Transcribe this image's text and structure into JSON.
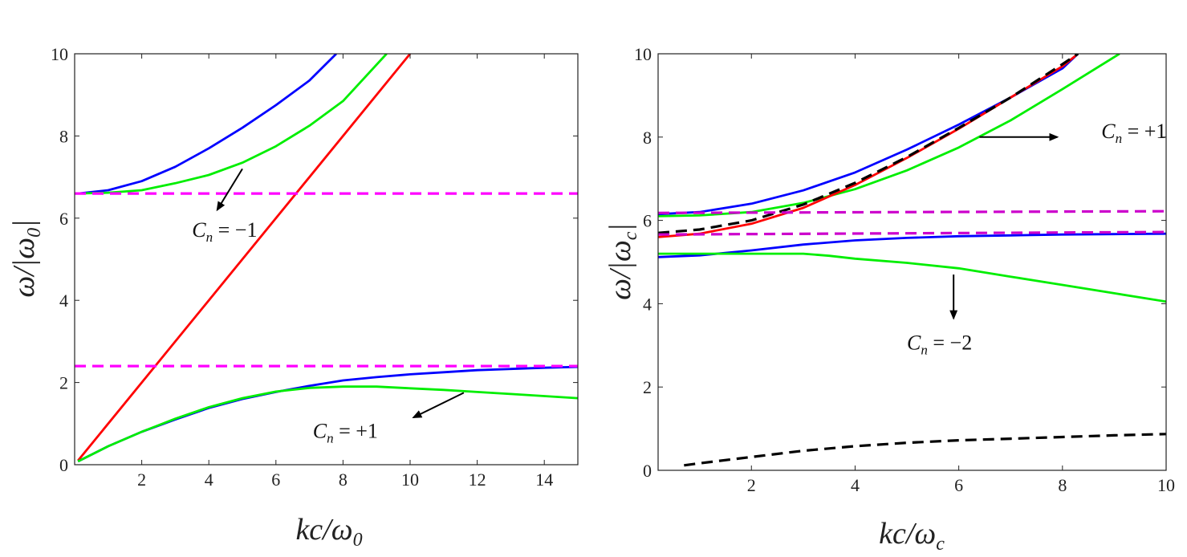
{
  "chart_data": [
    {
      "type": "line",
      "title": "",
      "xlabel": {
        "main": "kc/ω",
        "sub": "0"
      },
      "ylabel": {
        "main": "ω/|ω",
        "sub": "0",
        "end": "|"
      },
      "xlim": [
        0,
        15
      ],
      "ylim": [
        0,
        10
      ],
      "xticks": [
        2,
        4,
        6,
        8,
        10,
        12,
        14
      ],
      "yticks": [
        0,
        2,
        4,
        6,
        8,
        10
      ],
      "series": [
        {
          "name": "upper-blue",
          "color": "#0000ff",
          "dash": false,
          "x": [
            0.1,
            1,
            2,
            3,
            4,
            5,
            6,
            7,
            7.8
          ],
          "y": [
            6.6,
            6.68,
            6.9,
            7.25,
            7.7,
            8.2,
            8.75,
            9.35,
            10
          ]
        },
        {
          "name": "upper-green",
          "color": "#00ee00",
          "dash": false,
          "x": [
            0.1,
            1,
            2,
            3,
            4,
            5,
            6,
            7,
            8,
            9.3
          ],
          "y": [
            6.6,
            6.62,
            6.68,
            6.85,
            7.05,
            7.35,
            7.75,
            8.25,
            8.85,
            10
          ]
        },
        {
          "name": "light-line",
          "color": "#ff0000",
          "dash": false,
          "x": [
            0.1,
            10
          ],
          "y": [
            0.1,
            10
          ]
        },
        {
          "name": "lower-blue",
          "color": "#0000ff",
          "dash": false,
          "x": [
            0.1,
            1,
            2,
            3,
            4,
            5,
            6,
            7,
            8,
            9,
            10,
            11,
            12,
            13,
            14,
            15
          ],
          "y": [
            0.08,
            0.45,
            0.8,
            1.1,
            1.38,
            1.6,
            1.77,
            1.92,
            2.05,
            2.13,
            2.2,
            2.25,
            2.3,
            2.33,
            2.36,
            2.38
          ]
        },
        {
          "name": "lower-green",
          "color": "#00ee00",
          "dash": false,
          "x": [
            0.1,
            1,
            2,
            3,
            4,
            5,
            6,
            7,
            8,
            9,
            10,
            11,
            12,
            13,
            14,
            15
          ],
          "y": [
            0.08,
            0.45,
            0.8,
            1.12,
            1.4,
            1.62,
            1.78,
            1.87,
            1.9,
            1.9,
            1.86,
            1.82,
            1.77,
            1.72,
            1.67,
            1.62
          ]
        },
        {
          "name": "resonance-upper",
          "color": "#ff00ff",
          "dash": true,
          "x": [
            0,
            15
          ],
          "y": [
            6.6,
            6.6
          ]
        },
        {
          "name": "resonance-lower",
          "color": "#ff00ff",
          "dash": true,
          "x": [
            0,
            15
          ],
          "y": [
            2.4,
            2.4
          ]
        }
      ],
      "annotations": [
        {
          "main": "C",
          "sub": "n",
          "text": " = −1",
          "x": 3.5,
          "y": 5.55,
          "arrow_from": [
            5.0,
            7.2
          ],
          "arrow_to": [
            4.25,
            6.2
          ]
        },
        {
          "main": "C",
          "sub": "n",
          "text": " = +1",
          "x": 7.1,
          "y": 0.65,
          "arrow_from": [
            11.6,
            1.75
          ],
          "arrow_to": [
            10.1,
            1.15
          ]
        }
      ]
    },
    {
      "type": "line",
      "title": "",
      "xlabel": {
        "main": "kc/ω",
        "sub": "c"
      },
      "ylabel": {
        "main": "ω/|ω",
        "sub": "c",
        "end": "|"
      },
      "xlim": [
        0.2,
        10
      ],
      "ylim": [
        0,
        10
      ],
      "xticks": [
        2,
        4,
        6,
        8,
        10
      ],
      "yticks": [
        0,
        2,
        4,
        6,
        8,
        10
      ],
      "series": [
        {
          "name": "upper-blue",
          "color": "#0000ff",
          "dash": false,
          "x": [
            0.2,
            1,
            2,
            3,
            4,
            5,
            6,
            7,
            8,
            8.3
          ],
          "y": [
            6.15,
            6.2,
            6.4,
            6.72,
            7.15,
            7.7,
            8.3,
            8.95,
            9.65,
            10
          ]
        },
        {
          "name": "upper-green",
          "color": "#00ee00",
          "dash": false,
          "x": [
            0.2,
            1,
            2,
            3,
            4,
            5,
            6,
            7,
            8,
            9.1
          ],
          "y": [
            6.1,
            6.12,
            6.2,
            6.42,
            6.75,
            7.2,
            7.75,
            8.4,
            9.15,
            10
          ]
        },
        {
          "name": "red",
          "color": "#ff0000",
          "dash": false,
          "x": [
            0.2,
            1,
            2,
            3,
            4,
            5,
            6,
            7,
            8,
            8.3
          ],
          "y": [
            5.6,
            5.68,
            5.92,
            6.3,
            6.85,
            7.5,
            8.2,
            8.95,
            9.7,
            10
          ]
        },
        {
          "name": "black-dashed-upper",
          "color": "#000000",
          "dash": true,
          "x": [
            0.2,
            1,
            2,
            3,
            4,
            5,
            6,
            7,
            8,
            8.3
          ],
          "y": [
            5.7,
            5.78,
            6.0,
            6.38,
            6.9,
            7.52,
            8.22,
            8.95,
            9.75,
            10
          ]
        },
        {
          "name": "middle-blue",
          "color": "#0000ff",
          "dash": false,
          "x": [
            0.2,
            1,
            2,
            3,
            4,
            5,
            6,
            7,
            8,
            9,
            10
          ],
          "y": [
            5.12,
            5.16,
            5.28,
            5.42,
            5.52,
            5.58,
            5.62,
            5.64,
            5.66,
            5.67,
            5.68
          ]
        },
        {
          "name": "middle-green",
          "color": "#00ee00",
          "dash": false,
          "x": [
            0.2,
            1,
            2,
            3,
            3.5,
            4,
            5,
            6,
            7,
            8,
            9,
            10
          ],
          "y": [
            5.2,
            5.2,
            5.2,
            5.2,
            5.15,
            5.08,
            4.98,
            4.85,
            4.65,
            4.45,
            4.25,
            4.05
          ]
        },
        {
          "name": "black-dashed-lower",
          "color": "#000000",
          "dash": true,
          "x": [
            0.7,
            1,
            2,
            3,
            4,
            5,
            6,
            7,
            8,
            9,
            10
          ],
          "y": [
            0.12,
            0.17,
            0.32,
            0.47,
            0.58,
            0.66,
            0.72,
            0.76,
            0.8,
            0.84,
            0.87
          ]
        },
        {
          "name": "resonance-upper",
          "color": "#cc00cc",
          "dash": true,
          "x": [
            0.2,
            10
          ],
          "y": [
            6.18,
            6.22
          ]
        },
        {
          "name": "resonance-lower",
          "color": "#cc00cc",
          "dash": true,
          "x": [
            0.2,
            10
          ],
          "y": [
            5.66,
            5.72
          ]
        }
      ],
      "annotations": [
        {
          "main": "C",
          "sub": "n",
          "text": " = +1",
          "x": 8.75,
          "y": 7.98,
          "arrow_from": [
            6.4,
            8.0
          ],
          "arrow_to": [
            7.9,
            8.0
          ]
        },
        {
          "main": "C",
          "sub": "n",
          "text": " = −2",
          "x": 5.0,
          "y": 2.9,
          "arrow_from": [
            5.9,
            4.7
          ],
          "arrow_to": [
            5.9,
            3.65
          ]
        }
      ]
    }
  ]
}
